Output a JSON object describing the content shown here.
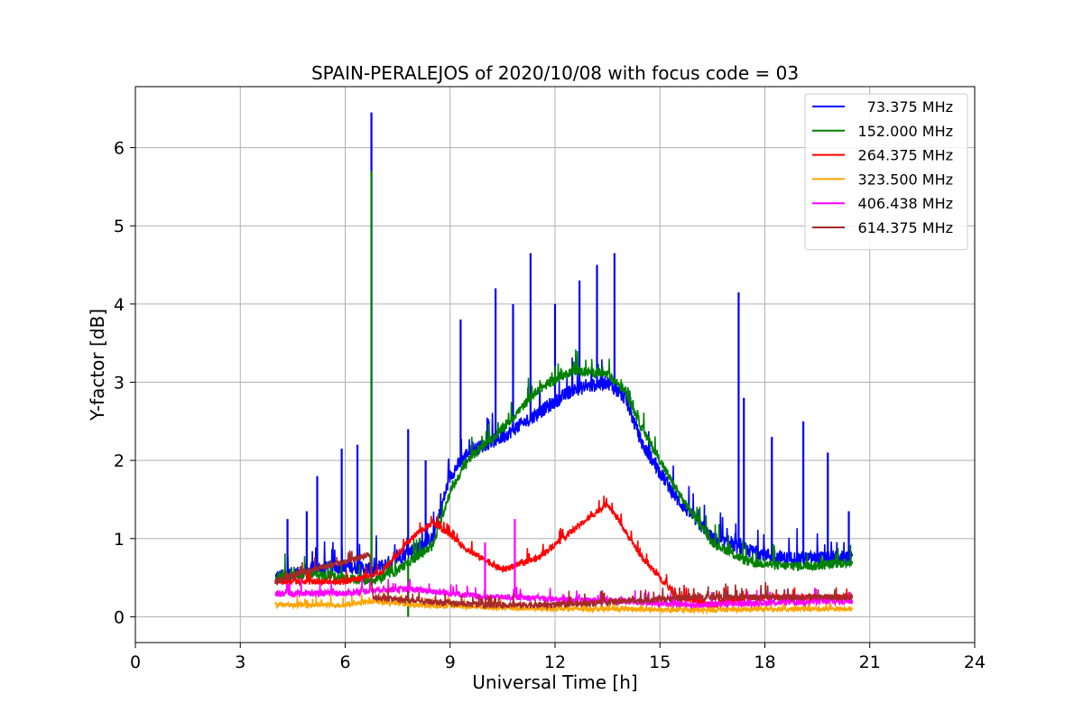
{
  "chart_data": {
    "type": "line",
    "title": "SPAIN-PERALEJOS of 2020/10/08 with focus code = 03",
    "xlabel": "Universal Time [h]",
    "ylabel": "Y-factor [dB]",
    "xlim": [
      0,
      24
    ],
    "ylim": [
      -0.33,
      6.78
    ],
    "xticks": [
      0,
      3,
      6,
      9,
      12,
      15,
      18,
      21,
      24
    ],
    "yticks": [
      0,
      1,
      2,
      3,
      4,
      5,
      6
    ],
    "grid": true,
    "legend_position": "top-right",
    "series": [
      {
        "name": "73.375 MHz",
        "color": "#0000ff",
        "noise": 0.09,
        "points": [
          [
            4.0,
            0.5
          ],
          [
            5.0,
            0.6
          ],
          [
            6.0,
            0.65
          ],
          [
            6.8,
            0.6
          ],
          [
            7.5,
            0.75
          ],
          [
            8.5,
            1.0
          ],
          [
            9.0,
            1.8
          ],
          [
            9.5,
            2.1
          ],
          [
            10.5,
            2.3
          ],
          [
            11.5,
            2.6
          ],
          [
            12.5,
            2.9
          ],
          [
            13.5,
            3.0
          ],
          [
            14.0,
            2.8
          ],
          [
            14.5,
            2.2
          ],
          [
            15.5,
            1.5
          ],
          [
            16.5,
            1.0
          ],
          [
            17.5,
            0.85
          ],
          [
            18.5,
            0.75
          ],
          [
            19.5,
            0.75
          ],
          [
            20.5,
            0.75
          ]
        ],
        "spikes": [
          [
            4.35,
            1.25
          ],
          [
            4.9,
            1.35
          ],
          [
            5.2,
            1.8
          ],
          [
            5.9,
            2.15
          ],
          [
            6.35,
            2.2
          ],
          [
            6.75,
            6.45
          ],
          [
            7.8,
            2.4
          ],
          [
            8.3,
            2.0
          ],
          [
            9.3,
            3.8
          ],
          [
            10.3,
            4.2
          ],
          [
            10.8,
            4.0
          ],
          [
            11.3,
            4.65
          ],
          [
            12.0,
            4.0
          ],
          [
            12.7,
            4.3
          ],
          [
            13.2,
            4.5
          ],
          [
            13.7,
            4.65
          ],
          [
            17.25,
            4.15
          ],
          [
            17.4,
            2.8
          ],
          [
            18.2,
            2.3
          ],
          [
            19.1,
            2.5
          ],
          [
            19.8,
            2.1
          ],
          [
            20.4,
            1.35
          ]
        ]
      },
      {
        "name": "152.000 MHz",
        "color": "#008000",
        "noise": 0.06,
        "points": [
          [
            4.0,
            0.5
          ],
          [
            5.0,
            0.55
          ],
          [
            6.0,
            0.5
          ],
          [
            6.8,
            0.45
          ],
          [
            7.5,
            0.6
          ],
          [
            8.5,
            0.9
          ],
          [
            9.0,
            1.6
          ],
          [
            9.5,
            2.0
          ],
          [
            10.5,
            2.4
          ],
          [
            11.5,
            2.9
          ],
          [
            12.5,
            3.15
          ],
          [
            13.5,
            3.1
          ],
          [
            14.0,
            2.9
          ],
          [
            14.5,
            2.4
          ],
          [
            15.5,
            1.6
          ],
          [
            16.5,
            0.95
          ],
          [
            17.5,
            0.7
          ],
          [
            18.5,
            0.65
          ],
          [
            19.5,
            0.65
          ],
          [
            20.5,
            0.7
          ]
        ],
        "spikes": [
          [
            6.75,
            5.7
          ],
          [
            7.8,
            0.0
          ]
        ]
      },
      {
        "name": "264.375 MHz",
        "color": "#ff0000",
        "noise": 0.04,
        "points": [
          [
            4.0,
            0.45
          ],
          [
            5.0,
            0.45
          ],
          [
            6.0,
            0.45
          ],
          [
            7.0,
            0.55
          ],
          [
            7.5,
            0.8
          ],
          [
            8.0,
            1.05
          ],
          [
            8.5,
            1.2
          ],
          [
            9.0,
            1.05
          ],
          [
            9.5,
            0.85
          ],
          [
            10.5,
            0.6
          ],
          [
            11.5,
            0.75
          ],
          [
            12.5,
            1.1
          ],
          [
            13.5,
            1.45
          ],
          [
            14.0,
            1.1
          ],
          [
            14.5,
            0.75
          ],
          [
            15.5,
            0.25
          ],
          [
            16.5,
            0.15
          ],
          [
            17.5,
            0.25
          ],
          [
            18.5,
            0.25
          ],
          [
            19.5,
            0.25
          ],
          [
            20.5,
            0.25
          ]
        ],
        "spikes": []
      },
      {
        "name": "323.500 MHz",
        "color": "#ffa500",
        "noise": 0.03,
        "points": [
          [
            4.0,
            0.15
          ],
          [
            6.0,
            0.15
          ],
          [
            6.8,
            0.2
          ],
          [
            8.0,
            0.15
          ],
          [
            10.0,
            0.12
          ],
          [
            12.0,
            0.1
          ],
          [
            14.0,
            0.1
          ],
          [
            16.0,
            0.08
          ],
          [
            18.0,
            0.1
          ],
          [
            20.5,
            0.1
          ]
        ],
        "spikes": []
      },
      {
        "name": "406.438 MHz",
        "color": "#ff00ff",
        "noise": 0.04,
        "points": [
          [
            4.0,
            0.3
          ],
          [
            5.0,
            0.3
          ],
          [
            6.0,
            0.3
          ],
          [
            7.0,
            0.35
          ],
          [
            8.0,
            0.35
          ],
          [
            9.0,
            0.3
          ],
          [
            10.0,
            0.25
          ],
          [
            11.0,
            0.25
          ],
          [
            12.0,
            0.22
          ],
          [
            14.0,
            0.2
          ],
          [
            16.0,
            0.15
          ],
          [
            18.0,
            0.18
          ],
          [
            20.5,
            0.2
          ]
        ],
        "spikes": [
          [
            10.0,
            0.95
          ],
          [
            10.85,
            1.25
          ]
        ]
      },
      {
        "name": "614.375 MHz",
        "color": "#a52a2a",
        "noise": 0.04,
        "points": [
          [
            4.0,
            0.45
          ],
          [
            5.0,
            0.6
          ],
          [
            6.0,
            0.7
          ],
          [
            6.7,
            0.8
          ],
          [
            6.8,
            0.25
          ],
          [
            8.0,
            0.2
          ],
          [
            10.0,
            0.15
          ],
          [
            12.0,
            0.15
          ],
          [
            14.0,
            0.2
          ],
          [
            16.0,
            0.25
          ],
          [
            18.0,
            0.25
          ],
          [
            20.5,
            0.25
          ]
        ],
        "spikes": []
      }
    ]
  }
}
